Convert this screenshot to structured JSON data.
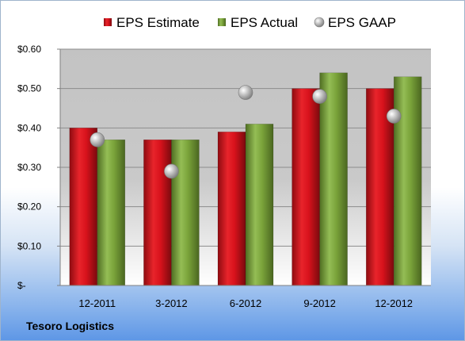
{
  "company": "Tesoro Logistics",
  "chart_data": {
    "type": "bar",
    "categories": [
      "12-2011",
      "3-2012",
      "6-2012",
      "9-2012",
      "12-2012"
    ],
    "series": [
      {
        "name": "EPS Estimate",
        "type": "bar",
        "color": "#d8121c",
        "values": [
          0.4,
          0.37,
          0.39,
          0.5,
          0.5
        ]
      },
      {
        "name": "EPS Actual",
        "type": "bar",
        "color": "#7aa33a",
        "values": [
          0.37,
          0.37,
          0.41,
          0.54,
          0.53
        ]
      },
      {
        "name": "EPS GAAP",
        "type": "scatter",
        "color": "#a6a6a6",
        "values": [
          0.37,
          0.29,
          0.49,
          0.48,
          0.43
        ]
      }
    ],
    "ylim": [
      0,
      0.6
    ],
    "yticks": [
      {
        "value": 0,
        "label": "$-"
      },
      {
        "value": 0.1,
        "label": "$0.10"
      },
      {
        "value": 0.2,
        "label": "$0.20"
      },
      {
        "value": 0.3,
        "label": "$0.30"
      },
      {
        "value": 0.4,
        "label": "$0.40"
      },
      {
        "value": 0.5,
        "label": "$0.50"
      },
      {
        "value": 0.6,
        "label": "$0.60"
      }
    ],
    "grid": true,
    "legend": "top"
  }
}
